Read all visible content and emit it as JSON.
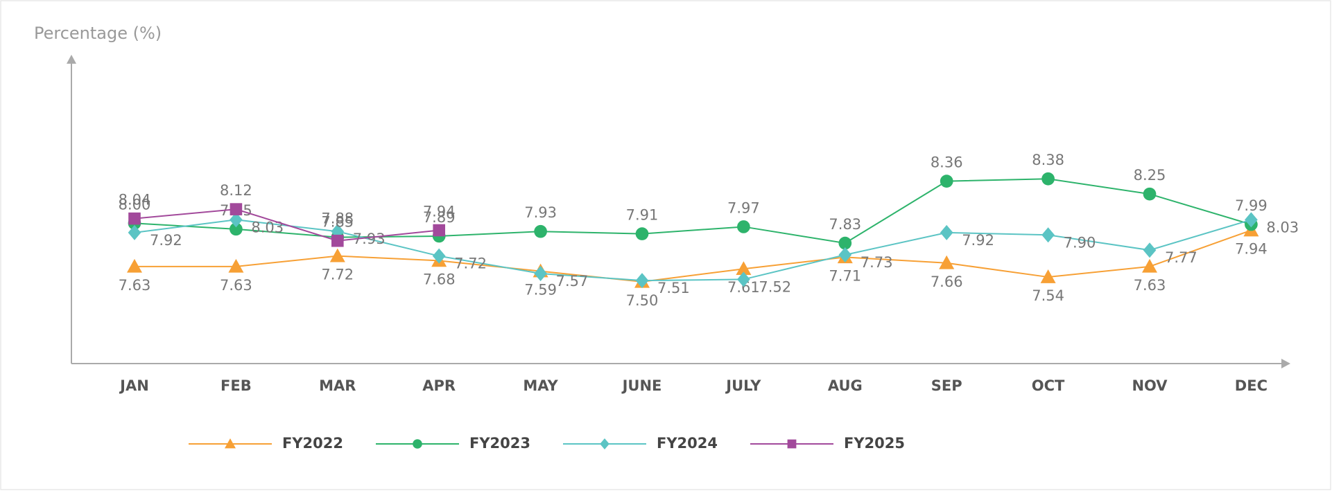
{
  "chart_data": {
    "type": "line",
    "y_label": "Percentage (%)",
    "categories": [
      "JAN",
      "FEB",
      "MAR",
      "APR",
      "MAY",
      "JUNE",
      "JULY",
      "AUG",
      "SEP",
      "OCT",
      "NOV",
      "DEC"
    ],
    "ylim": [
      6.8,
      9.4
    ],
    "series": [
      {
        "name": "FY2022",
        "color": "#f7a035",
        "marker": "triangle",
        "values": [
          7.63,
          7.63,
          7.72,
          7.68,
          7.59,
          7.5,
          7.61,
          7.71,
          7.66,
          7.54,
          7.63,
          7.94
        ],
        "value_labels": [
          "7.63",
          "7.63",
          "7.72",
          "7.68",
          "7.59",
          "7.50",
          "7.61",
          "7.71",
          "7.66",
          "7.54",
          "7.63",
          "7.94"
        ]
      },
      {
        "name": "FY2023",
        "color": "#2db36b",
        "marker": "circle",
        "values": [
          8,
          7.95,
          7.88,
          7.89,
          7.93,
          7.91,
          7.97,
          7.83,
          8.36,
          8.38,
          8.25,
          7.99
        ],
        "value_labels": [
          "8.00",
          "7.95",
          "7.88",
          "7.89",
          "7.93",
          "7.91",
          "7.97",
          "7.83",
          "8.36",
          "8.38",
          "8.25",
          "7.99"
        ]
      },
      {
        "name": "FY2024",
        "color": "#5bc4c4",
        "marker": "diamond",
        "values": [
          7.92,
          8.03,
          7.93,
          7.72,
          7.57,
          7.51,
          7.52,
          7.73,
          7.92,
          7.9,
          7.77,
          8.03
        ],
        "value_labels": [
          "7.92",
          "8.03",
          "7.93",
          "7.72",
          "7.57",
          "7.51",
          "7.52",
          "7.73",
          "7.92",
          "7.90",
          "7.77",
          "8.03"
        ]
      },
      {
        "name": "FY2025",
        "color": "#a2499b",
        "marker": "square",
        "values": [
          8.04,
          8.12,
          7.85,
          7.94,
          null,
          null,
          null,
          null,
          null,
          null,
          null,
          null
        ],
        "value_labels": [
          "8.04",
          "8.12",
          "7.85",
          "7.94",
          null,
          null,
          null,
          null,
          null,
          null,
          null,
          null
        ]
      }
    ]
  }
}
